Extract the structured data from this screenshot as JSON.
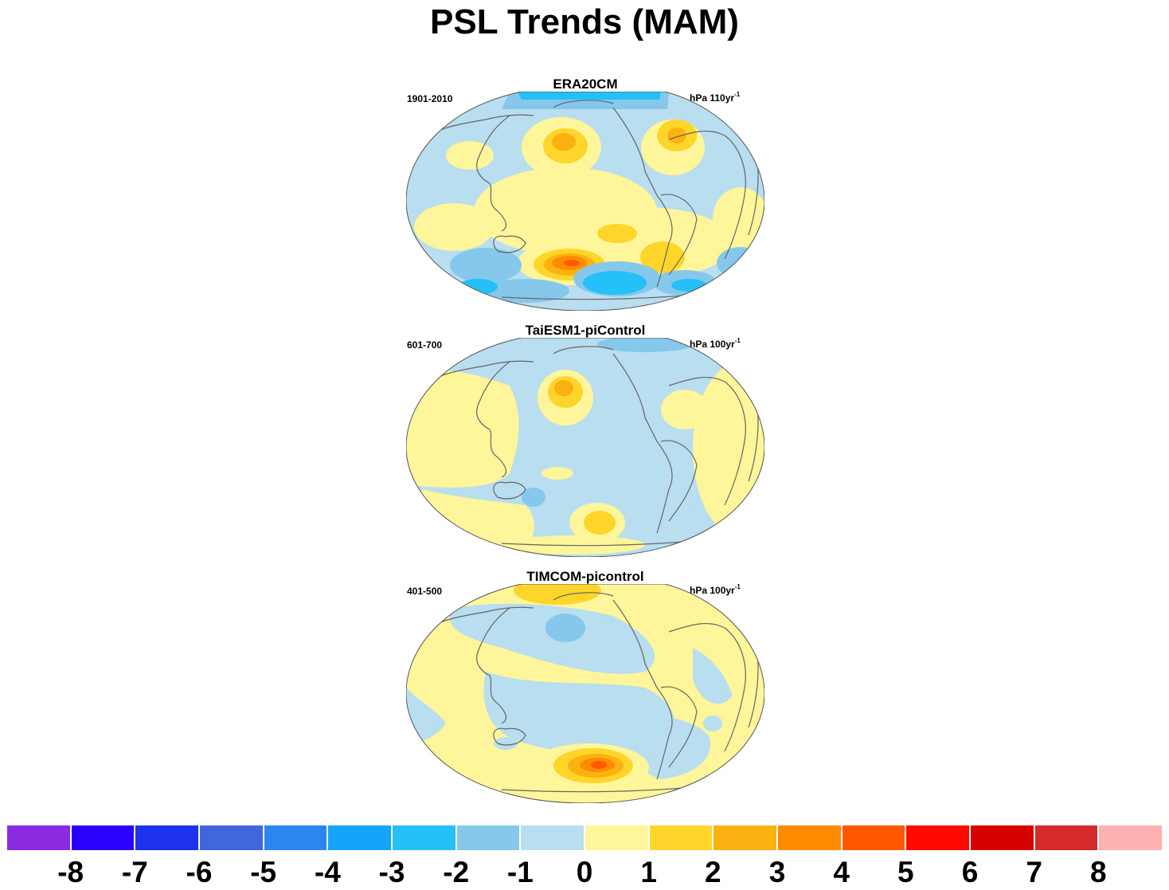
{
  "figure": {
    "title": "PSL Trends (MAM)"
  },
  "panels": [
    {
      "title": "ERA20CM",
      "period": "1901-2010",
      "unit_base": "hPa 110yr",
      "unit_exp": "-1"
    },
    {
      "title": "TaiESM1-piControl",
      "period": "601-700",
      "unit_base": "hPa 100yr",
      "unit_exp": "-1"
    },
    {
      "title": "TIMCOM-picontrol",
      "period": "401-500",
      "unit_base": "hPa 100yr",
      "unit_exp": "-1"
    }
  ],
  "colorbar": {
    "colors": [
      "#8a2be2",
      "#2a00ff",
      "#1f32ee",
      "#3f66dc",
      "#2b87f0",
      "#14a5fa",
      "#24c0f7",
      "#85c8ec",
      "#b8def0",
      "#fff59a",
      "#ffd52a",
      "#fbb110",
      "#ff8c00",
      "#ff5800",
      "#ff0a00",
      "#d90000",
      "#d42a2a",
      "#ffb0b0"
    ],
    "labels": [
      "-8",
      "-7",
      "-6",
      "-5",
      "-4",
      "-3",
      "-2",
      "-1",
      "0",
      "1",
      "2",
      "3",
      "4",
      "5",
      "6",
      "7",
      "8"
    ]
  }
}
